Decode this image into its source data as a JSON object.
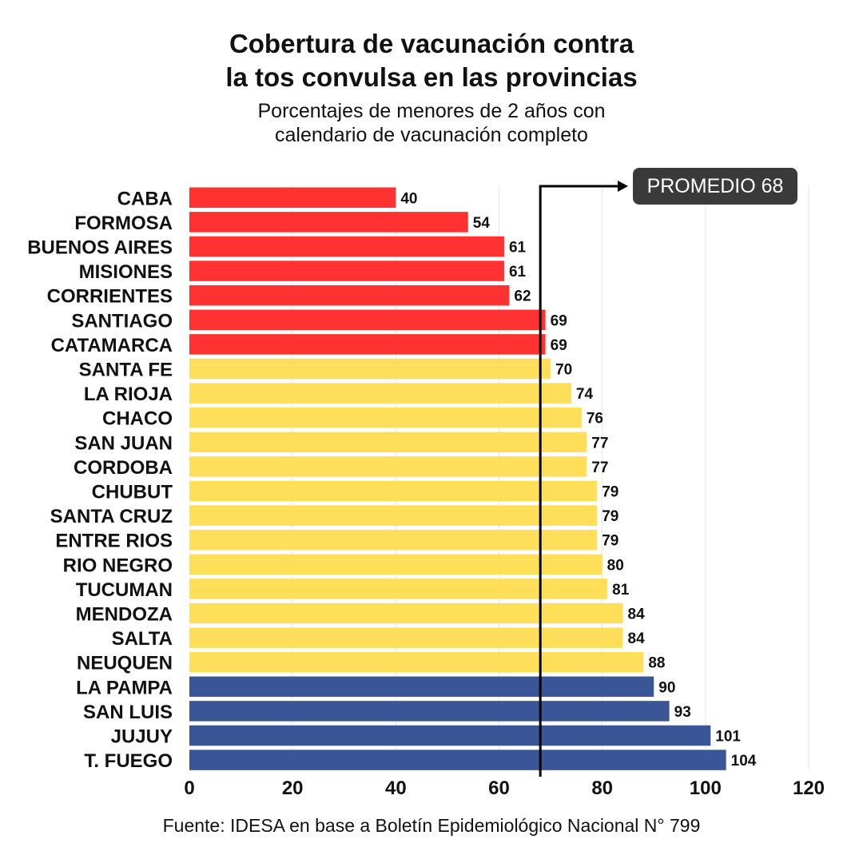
{
  "title_line1": "Cobertura de vacunación contra",
  "title_line2": "la tos convulsa en las provincias",
  "subtitle_line1": "Porcentajes de menores de 2 años con",
  "subtitle_line2": "calendario de vacunación completo",
  "source": "Fuente: IDESA en base a Boletín Epidemiológico Nacional N° 799",
  "colors": {
    "red": "#ff3131",
    "yellow": "#ffde59",
    "blue": "#3a5697",
    "grid": "#e6e6e6",
    "avg_line": "#000000"
  },
  "chart_data": {
    "type": "bar",
    "orientation": "horizontal",
    "categories": [
      "CABA",
      "FORMOSA",
      "BUENOS AIRES",
      "MISIONES",
      "CORRIENTES",
      "SANTIAGO",
      "CATAMARCA",
      "SANTA FE",
      "LA RIOJA",
      "CHACO",
      "SAN JUAN",
      "CORDOBA",
      "CHUBUT",
      "SANTA CRUZ",
      "ENTRE RIOS",
      "RIO NEGRO",
      "TUCUMAN",
      "MENDOZA",
      "SALTA",
      "NEUQUEN",
      "LA PAMPA",
      "SAN LUIS",
      "JUJUY",
      "T. FUEGO"
    ],
    "values": [
      40,
      54,
      61,
      61,
      62,
      69,
      69,
      70,
      74,
      76,
      77,
      77,
      79,
      79,
      79,
      80,
      81,
      84,
      84,
      88,
      90,
      93,
      101,
      104
    ],
    "bar_colors": [
      "red",
      "red",
      "red",
      "red",
      "red",
      "red",
      "red",
      "yellow",
      "yellow",
      "yellow",
      "yellow",
      "yellow",
      "yellow",
      "yellow",
      "yellow",
      "yellow",
      "yellow",
      "yellow",
      "yellow",
      "yellow",
      "blue",
      "blue",
      "blue",
      "blue"
    ],
    "xlim": [
      0,
      120
    ],
    "xticks": [
      0,
      20,
      40,
      60,
      80,
      100,
      120
    ],
    "grid": true,
    "reference_line": {
      "value": 68,
      "label": "PROMEDIO 68"
    }
  }
}
